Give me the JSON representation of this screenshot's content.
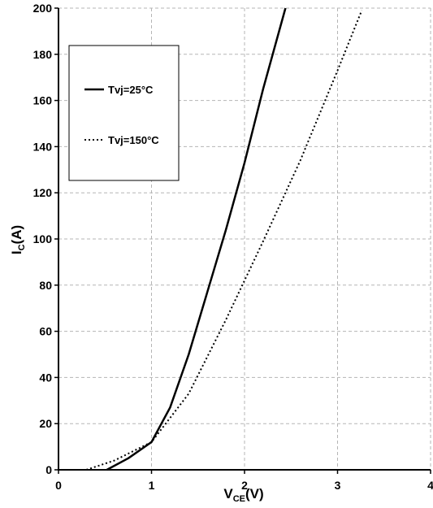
{
  "chart_data": {
    "type": "line",
    "title": "",
    "xlabel": "V",
    "xlabel_sub": "CE",
    "xlabel_suffix": "(V)",
    "ylabel": "I",
    "ylabel_sub": "C",
    "ylabel_suffix": "(A)",
    "xlim": [
      0,
      4
    ],
    "ylim": [
      0,
      200
    ],
    "xticks": [
      0,
      1,
      2,
      3,
      4
    ],
    "yticks": [
      0,
      20,
      40,
      60,
      80,
      100,
      120,
      140,
      160,
      180,
      200
    ],
    "grid": true,
    "legend_position": "top-left",
    "series": [
      {
        "name": "Tvj=25°C",
        "style": "solid",
        "color": "#000000",
        "x": [
          0.52,
          0.75,
          1.0,
          1.2,
          1.4,
          1.6,
          1.8,
          2.0,
          2.2,
          2.44
        ],
        "y": [
          0,
          5,
          12,
          27,
          50,
          77,
          104,
          133,
          165,
          200
        ]
      },
      {
        "name": "Tvj=150°C",
        "style": "dotted",
        "color": "#000000",
        "x": [
          0.3,
          0.6,
          1.0,
          1.4,
          1.8,
          2.0,
          2.2,
          2.6,
          3.0,
          3.26
        ],
        "y": [
          0,
          4,
          12,
          33,
          65,
          82,
          99,
          134,
          173,
          199
        ]
      }
    ]
  }
}
